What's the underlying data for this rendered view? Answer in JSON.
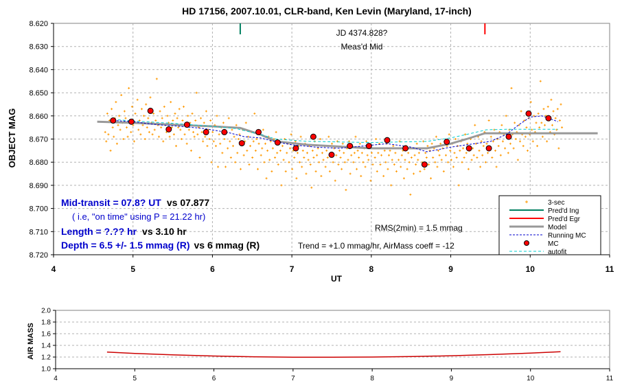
{
  "chart_data": [
    {
      "type": "scatter",
      "title": "HD 17156, 2007.10.01, CLR-band, Ken Levin (Maryland, 17-inch)",
      "xlabel": "UT",
      "ylabel": "OBJECT MAG",
      "xlim": [
        4,
        11
      ],
      "ylim": [
        8.62,
        8.72
      ],
      "y_inverted": true,
      "grid": true,
      "x_ticks": [
        "4",
        "5",
        "6",
        "7",
        "8",
        "9",
        "10",
        "11"
      ],
      "y_ticks": [
        "8.620",
        "8.630",
        "8.640",
        "8.650",
        "8.660",
        "8.670",
        "8.680",
        "8.690",
        "8.700",
        "8.710",
        "8.720"
      ],
      "legend_position": "bottom-right",
      "legend": [
        "3-sec",
        "Pred'd Ing",
        "Pred'd Egr",
        "Model",
        "Running MC",
        "MC",
        "autofit"
      ],
      "colors": {
        "three_sec": "#ff9900",
        "ingress": "#008060",
        "egress": "#ff0000",
        "model": "#999999",
        "running_mc": "#0000cc",
        "mc": "#ff0000",
        "autofit": "#00cccc",
        "annotation_blue": "#0000cc"
      },
      "annotations": {
        "jd": "JD 4374.828?",
        "meas": "Meas'd Mid",
        "mid_blue": "Mid-transit = 07.8? UT",
        "mid_black": "vs 07.877",
        "on_time": "( i.e, \"on time\" using P = 21.22 hr)",
        "length_blue": "Length = ?.?? hr",
        "length_black": "vs 3.10 hr",
        "depth_blue": "Depth = 6.5 +/- 1.5 mmag (R)",
        "depth_black": "vs 6 mmag (R)",
        "rms": "RMS(2min) = 1.5 mmag",
        "trend": "Trend = +1.0 mmag/hr, AirMass coeff = -12"
      },
      "ingress_ut": 6.35,
      "egress_ut": 9.43,
      "series": [
        {
          "name": "Model",
          "x": [
            4.55,
            5.0,
            5.5,
            6.0,
            6.35,
            6.6,
            6.8,
            7.2,
            8.0,
            8.7,
            9.0,
            9.2,
            9.43,
            9.8,
            10.3,
            10.85
          ],
          "y": [
            8.6625,
            8.663,
            8.6638,
            8.6645,
            8.6652,
            8.668,
            8.671,
            8.6725,
            8.674,
            8.674,
            8.672,
            8.67,
            8.6675,
            8.6675,
            8.6675,
            8.6675
          ]
        },
        {
          "name": "MC",
          "x": [
            4.75,
            4.98,
            5.22,
            5.45,
            5.68,
            5.92,
            6.15,
            6.37,
            6.58,
            6.82,
            7.05,
            7.27,
            7.5,
            7.73,
            7.97,
            8.2,
            8.43,
            8.67,
            8.95,
            9.23,
            9.48,
            9.73,
            9.98,
            10.23
          ],
          "y": [
            8.662,
            8.6625,
            8.6578,
            8.6658,
            8.6638,
            8.667,
            8.667,
            8.6718,
            8.667,
            8.6715,
            8.674,
            8.669,
            8.6768,
            8.673,
            8.673,
            8.6705,
            8.674,
            8.681,
            8.6712,
            8.674,
            8.674,
            8.669,
            8.659,
            8.661
          ]
        },
        {
          "name": "Running MC",
          "x": [
            4.75,
            5.0,
            5.3,
            5.6,
            5.9,
            6.2,
            6.4,
            6.6,
            6.8,
            7.0,
            7.3,
            7.6,
            7.9,
            8.2,
            8.5,
            8.7,
            9.0,
            9.3,
            9.5,
            9.7,
            9.85,
            10.0,
            10.15,
            10.35
          ],
          "y": [
            8.662,
            8.6625,
            8.6638,
            8.6645,
            8.6655,
            8.6672,
            8.669,
            8.6695,
            8.6712,
            8.6725,
            8.6735,
            8.674,
            8.673,
            8.672,
            8.6735,
            8.6755,
            8.6735,
            8.672,
            8.671,
            8.668,
            8.664,
            8.6605,
            8.66,
            8.6625
          ]
        },
        {
          "name": "autofit",
          "x": [
            4.75,
            5.0,
            5.5,
            6.0,
            6.3,
            6.6,
            6.8,
            7.2,
            8.0,
            8.7,
            9.0,
            9.2,
            9.45,
            9.7,
            9.9,
            10.35
          ],
          "y": [
            8.6615,
            8.6622,
            8.6632,
            8.6645,
            8.6655,
            8.668,
            8.67,
            8.671,
            8.6715,
            8.671,
            8.6695,
            8.668,
            8.666,
            8.6658,
            8.6658,
            8.6658
          ]
        },
        {
          "name": "3-sec",
          "x_start": 4.65,
          "x_end": 10.4,
          "y": [
            8.667,
            8.671,
            8.659,
            8.668,
            8.662,
            8.675,
            8.657,
            8.665,
            8.669,
            8.661,
            8.654,
            8.672,
            8.664,
            8.66,
            8.666,
            8.651,
            8.663,
            8.67,
            8.658,
            8.661,
            8.665,
            8.669,
            8.648,
            8.662,
            8.667,
            8.656,
            8.664,
            8.671,
            8.659,
            8.663,
            8.653,
            8.666,
            8.662,
            8.668,
            8.657,
            8.664,
            8.66,
            8.67,
            8.655,
            8.665,
            8.661,
            8.667,
            8.652,
            8.663,
            8.668,
            8.659,
            8.666,
            8.662,
            8.644,
            8.664,
            8.669,
            8.658,
            8.665,
            8.661,
            8.671,
            8.656,
            8.664,
            8.667,
            8.66,
            8.663,
            8.669,
            8.654,
            8.665,
            8.662,
            8.668,
            8.659,
            8.673,
            8.661,
            8.665,
            8.657,
            8.666,
            8.67,
            8.662,
            8.656,
            8.668,
            8.664,
            8.672,
            8.66,
            8.666,
            8.663,
            8.675,
            8.659,
            8.667,
            8.669,
            8.662,
            8.65,
            8.668,
            8.665,
            8.678,
            8.661,
            8.667,
            8.671,
            8.663,
            8.669,
            8.658,
            8.673,
            8.666,
            8.67,
            8.662,
            8.68,
            8.667,
            8.671,
            8.664,
            8.673,
            8.66,
            8.682,
            8.668,
            8.672,
            8.665,
            8.676,
            8.663,
            8.67,
            8.682,
            8.667,
            8.674,
            8.661,
            8.671,
            8.678,
            8.666,
            8.673,
            8.669,
            8.68,
            8.664,
            8.676,
            8.67,
            8.668,
            8.683,
            8.672,
            8.666,
            8.677,
            8.671,
            8.663,
            8.675,
            8.669,
            8.681,
            8.673,
            8.667,
            8.678,
            8.671,
            8.659,
            8.675,
            8.67,
            8.683,
            8.672,
            8.668,
            8.677,
            8.674,
            8.666,
            8.68,
            8.672,
            8.687,
            8.675,
            8.669,
            8.679,
            8.671,
            8.684,
            8.674,
            8.67,
            8.678,
            8.667,
            8.676,
            8.681,
            8.672,
            8.675,
            8.69,
            8.673,
            8.679,
            8.67,
            8.684,
            8.676,
            8.672,
            8.68,
            8.674,
            8.668,
            8.683,
            8.675,
            8.678,
            8.671,
            8.687,
            8.676,
            8.673,
            8.68,
            8.669,
            8.682,
            8.675,
            8.678,
            8.672,
            8.685,
            8.676,
            8.679,
            8.673,
            8.681,
            8.691,
            8.675,
            8.678,
            8.671,
            8.684,
            8.677,
            8.674,
            8.68,
            8.67,
            8.686,
            8.676,
            8.679,
            8.673,
            8.682,
            8.675,
            8.678,
            8.669,
            8.684,
            8.676,
            8.672,
            8.68,
            8.674,
            8.688,
            8.677,
            8.671,
            8.681,
            8.675,
            8.678,
            8.683,
            8.672,
            8.676,
            8.68,
            8.692,
            8.674,
            8.679,
            8.671,
            8.685,
            8.677,
            8.673,
            8.68,
            8.676,
            8.669,
            8.683,
            8.675,
            8.678,
            8.672,
            8.686,
            8.676,
            8.68,
            8.674,
            8.682,
            8.671,
            8.677,
            8.679,
            8.673,
            8.688,
            8.676,
            8.681,
            8.674,
            8.678,
            8.67,
            8.684,
            8.676,
            8.672,
            8.681,
            8.677,
            8.674,
            8.686,
            8.675,
            8.68,
            8.672,
            8.683,
            8.677,
            8.675,
            8.69,
            8.679,
            8.673,
            8.681,
            8.676,
            8.684,
            8.674,
            8.679,
            8.671,
            8.682,
            8.677,
            8.675,
            8.687,
            8.679,
            8.673,
            8.683,
            8.676,
            8.68,
            8.694,
            8.678,
            8.674,
            8.685,
            8.677,
            8.681,
            8.672,
            8.679,
            8.676,
            8.684,
            8.674,
            8.68,
            8.671,
            8.683,
            8.676,
            8.678,
            8.673,
            8.681,
            8.675,
            8.687,
            8.672,
            8.678,
            8.674,
            8.68,
            8.669,
            8.682,
            8.675,
            8.677,
            8.672,
            8.679,
            8.674,
            8.684,
            8.671,
            8.677,
            8.673,
            8.68,
            8.668,
            8.675,
            8.679,
            8.672,
            8.682,
            8.676,
            8.67,
            8.678,
            8.673,
            8.69,
            8.675,
            8.671,
            8.68,
            8.674,
            8.678,
            8.668,
            8.676,
            8.672,
            8.683,
            8.675,
            8.67,
            8.679,
            8.674,
            8.677,
            8.664,
            8.672,
            8.678,
            8.669,
            8.675,
            8.682,
            8.671,
            8.677,
            8.673,
            8.667,
            8.68,
            8.672,
            8.676,
            8.662,
            8.674,
            8.669,
            8.678,
            8.671,
            8.666,
            8.675,
            8.682,
            8.67,
            8.673,
            8.667,
            8.677,
            8.664,
            8.671,
            8.668,
            8.674,
            8.66,
            8.669,
            8.676,
            8.666,
            8.672,
            8.648,
            8.668,
            8.674,
            8.663,
            8.67,
            8.667,
            8.679,
            8.664,
            8.671,
            8.658,
            8.668,
            8.673,
            8.662,
            8.669,
            8.665,
            8.675,
            8.661,
            8.668,
            8.654,
            8.666,
            8.671,
            8.66,
            8.667,
            8.663,
            8.673,
            8.659,
            8.665,
            8.645,
            8.663,
            8.669,
            8.657,
            8.664,
            8.66,
            8.671,
            8.656,
            8.662,
            8.667,
            8.653,
            8.664,
            8.658,
            8.668,
            8.661,
            8.666,
            8.657,
            8.674,
            8.662,
            8.655,
            8.665
          ]
        }
      ]
    },
    {
      "type": "line",
      "ylabel": "AIR MASS",
      "xlim": [
        4,
        11
      ],
      "ylim": [
        1.0,
        2.0
      ],
      "grid": true,
      "x_ticks": [
        "4",
        "5",
        "6",
        "7",
        "8",
        "9",
        "10",
        "11"
      ],
      "y_ticks": [
        "1.0",
        "1.2",
        "1.4",
        "1.6",
        "1.8",
        "2.0"
      ],
      "series": [
        {
          "name": "",
          "color": "#cc0000",
          "x": [
            4.65,
            5.0,
            5.5,
            6.0,
            6.5,
            7.0,
            7.5,
            8.0,
            8.5,
            9.0,
            9.5,
            10.0,
            10.38
          ],
          "y": [
            1.285,
            1.262,
            1.237,
            1.218,
            1.205,
            1.198,
            1.196,
            1.2,
            1.208,
            1.222,
            1.242,
            1.268,
            1.292
          ]
        }
      ]
    }
  ]
}
